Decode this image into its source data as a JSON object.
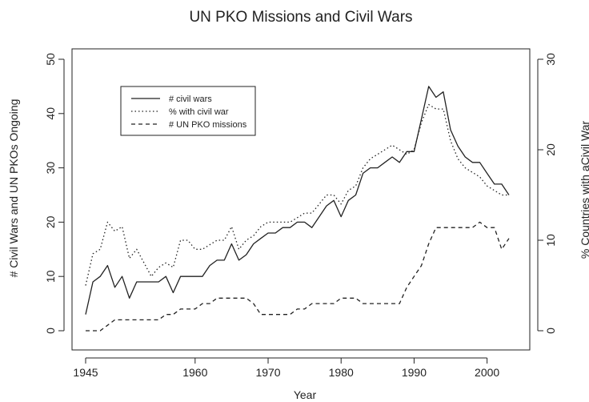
{
  "chart_data": {
    "type": "line",
    "title": "UN PKO Missions and Civil Wars",
    "xlabel": "Year",
    "ylabel_left": "# Civil Wars and UN PKOs Ongoing",
    "ylabel_right": "% Countries with aCivil War",
    "xlim": [
      1945,
      2003
    ],
    "ylim_left": [
      0,
      50
    ],
    "ylim_right": [
      0,
      30
    ],
    "x_ticks": [
      "1945",
      "1960",
      "1970",
      "1980",
      "1990",
      "2000"
    ],
    "y_left_ticks": [
      "0",
      "10",
      "20",
      "30",
      "40",
      "50"
    ],
    "y_right_ticks": [
      "0",
      "10",
      "20",
      "30"
    ],
    "grid": false,
    "legend_position": "top-left",
    "x": [
      1945,
      1946,
      1947,
      1948,
      1949,
      1950,
      1951,
      1952,
      1953,
      1954,
      1955,
      1956,
      1957,
      1958,
      1959,
      1960,
      1961,
      1962,
      1963,
      1964,
      1965,
      1966,
      1967,
      1968,
      1969,
      1970,
      1971,
      1972,
      1973,
      1974,
      1975,
      1976,
      1977,
      1978,
      1979,
      1980,
      1981,
      1982,
      1983,
      1984,
      1985,
      1986,
      1987,
      1988,
      1989,
      1990,
      1991,
      1992,
      1993,
      1994,
      1995,
      1996,
      1997,
      1998,
      1999,
      2000,
      2001,
      2002,
      2003
    ],
    "series": [
      {
        "name": "# civil wars",
        "axis": "left",
        "style": "solid",
        "values": [
          3,
          9,
          10,
          12,
          8,
          10,
          6,
          9,
          9,
          9,
          9,
          10,
          7,
          10,
          10,
          10,
          10,
          12,
          13,
          13,
          16,
          13,
          14,
          16,
          17,
          18,
          18,
          19,
          19,
          20,
          20,
          19,
          21,
          23,
          24,
          21,
          24,
          25,
          29,
          30,
          30,
          31,
          32,
          31,
          33,
          33,
          39,
          45,
          43,
          44,
          37,
          34,
          32,
          31,
          31,
          29,
          27,
          27,
          25
        ]
      },
      {
        "name": "% with civil war",
        "axis": "right",
        "style": "dotted",
        "values": [
          5,
          8.5,
          9,
          12,
          11,
          11.5,
          8,
          9,
          7.5,
          6,
          7,
          7.5,
          7,
          10,
          10,
          9,
          9,
          9.5,
          10,
          10,
          11.5,
          9,
          10,
          10.5,
          11.5,
          12,
          12,
          12,
          12,
          12.5,
          13,
          13,
          14,
          15,
          15,
          14,
          15.5,
          16,
          18,
          19,
          19.5,
          20,
          20.5,
          20,
          19.5,
          20,
          23,
          25,
          24.5,
          24.5,
          21,
          19,
          18,
          17.5,
          17,
          16,
          15.5,
          15,
          15
        ]
      },
      {
        "name": "# UN PKO missions",
        "axis": "left",
        "style": "dashed",
        "values": [
          0,
          0,
          0,
          1,
          2,
          2,
          2,
          2,
          2,
          2,
          2,
          3,
          3,
          4,
          4,
          4,
          5,
          5,
          6,
          6,
          6,
          6,
          6,
          5,
          3,
          3,
          3,
          3,
          3,
          4,
          4,
          5,
          5,
          5,
          5,
          6,
          6,
          6,
          5,
          5,
          5,
          5,
          5,
          5,
          8,
          10,
          12,
          16,
          19,
          19,
          19,
          19,
          19,
          19,
          20,
          19,
          19,
          15,
          17
        ]
      }
    ]
  }
}
